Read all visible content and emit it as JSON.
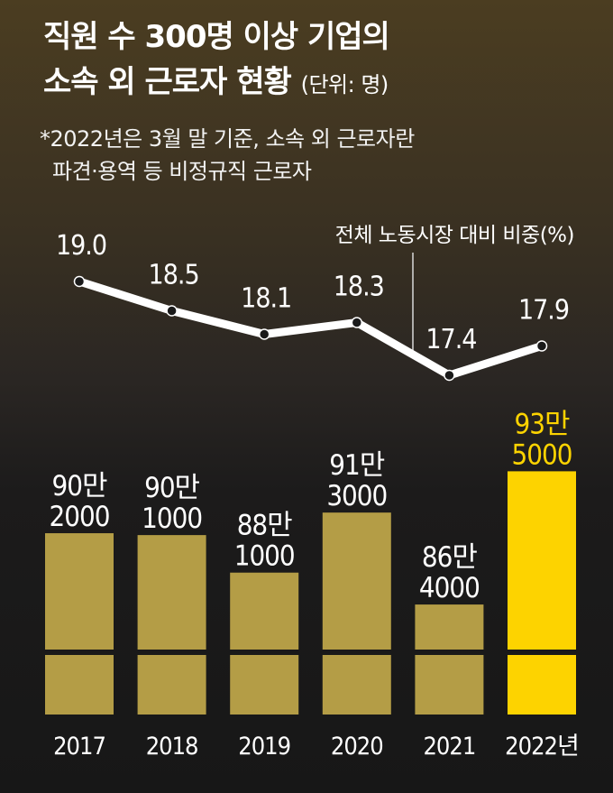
{
  "header": {
    "title_line1": "직원 수 300명 이상 기업의",
    "title_line2": "소속 외 근로자 현황",
    "unit": "(단위: 명)",
    "note_line1": "*2022년은 3월 말 기준, 소속 외 근로자란",
    "note_line2": "파견·용역 등 비정규직 근로자"
  },
  "colors": {
    "bar": "#b49d46",
    "bar_highlight": "#fdd300",
    "label_highlight": "#fdd300",
    "line": "#ffffff"
  },
  "chart_data": [
    {
      "type": "line",
      "title": "전체 노동시장 대비 비중(%)",
      "categories": [
        "2017",
        "2018",
        "2019",
        "2020",
        "2021",
        "2022년"
      ],
      "values": [
        19.0,
        18.5,
        18.1,
        18.3,
        17.4,
        17.9
      ],
      "labels": [
        "19.0",
        "18.5",
        "18.1",
        "18.3",
        "17.4",
        "17.9"
      ]
    },
    {
      "type": "bar",
      "categories": [
        "2017",
        "2018",
        "2019",
        "2020",
        "2021",
        "2022년"
      ],
      "values": [
        902000,
        901000,
        881000,
        913000,
        864000,
        935000
      ],
      "labels_line1": [
        "90만",
        "90만",
        "88만",
        "91만",
        "86만",
        "93만"
      ],
      "labels_line2": [
        "2000",
        "1000",
        "1000",
        "3000",
        "4000",
        "5000"
      ],
      "highlight_index": 5,
      "axis_break": true
    }
  ]
}
